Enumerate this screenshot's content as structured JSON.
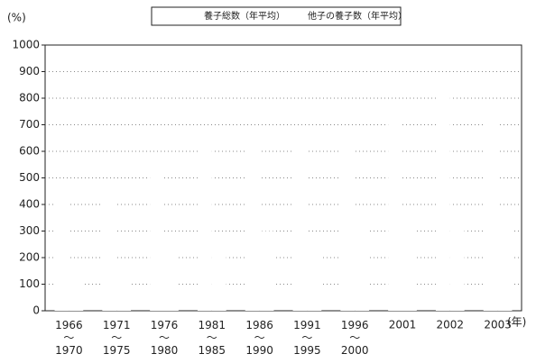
{
  "chart_data": {
    "type": "bar",
    "y_label": "(%)",
    "x_label": "(年)",
    "categories": [
      "1966〜1970",
      "1971〜1975",
      "1976〜1980",
      "1981〜1985",
      "1986〜1990",
      "1991〜1995",
      "1996〜2000",
      "2001",
      "2002",
      "2003"
    ],
    "series": [
      {
        "name": "養子総数（年平均）",
        "color": "#ffffff",
        "values": [
          420,
          480,
          520,
          620,
          650,
          640,
          660,
          720,
          820,
          760
        ]
      },
      {
        "name": "他子の養子数（年平均）",
        "color": "#ffffff",
        "values": [
          130,
          190,
          210,
          280,
          300,
          290,
          310,
          330,
          360,
          340
        ]
      }
    ],
    "ylim": [
      0,
      1000
    ],
    "yticks": [
      0,
      100,
      200,
      300,
      400,
      500,
      600,
      700,
      800,
      900,
      1000
    ],
    "grid": true
  }
}
